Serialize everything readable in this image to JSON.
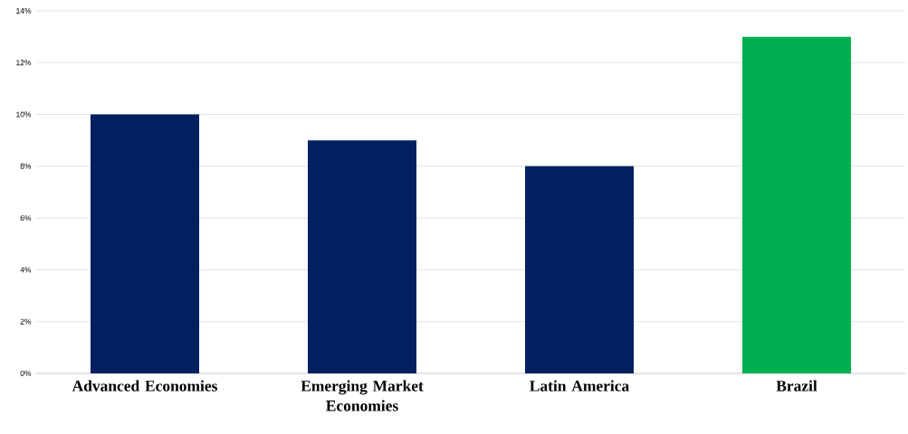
{
  "chart_data": {
    "type": "bar",
    "categories": [
      "Advanced Economies",
      "Emerging Market Economies",
      "Latin America",
      "Brazil"
    ],
    "values": [
      10,
      9,
      8,
      13
    ],
    "colors": [
      "#002060",
      "#002060",
      "#002060",
      "#00b050"
    ],
    "ylim": [
      0,
      14
    ],
    "yticks": [
      {
        "value": 0,
        "label": "0%"
      },
      {
        "value": 2,
        "label": "2%"
      },
      {
        "value": 4,
        "label": "4%"
      },
      {
        "value": 6,
        "label": "6%"
      },
      {
        "value": 8,
        "label": "8%"
      },
      {
        "value": 10,
        "label": "10%"
      },
      {
        "value": 12,
        "label": "12%"
      },
      {
        "value": 14,
        "label": "14%"
      }
    ],
    "grid": "y"
  }
}
